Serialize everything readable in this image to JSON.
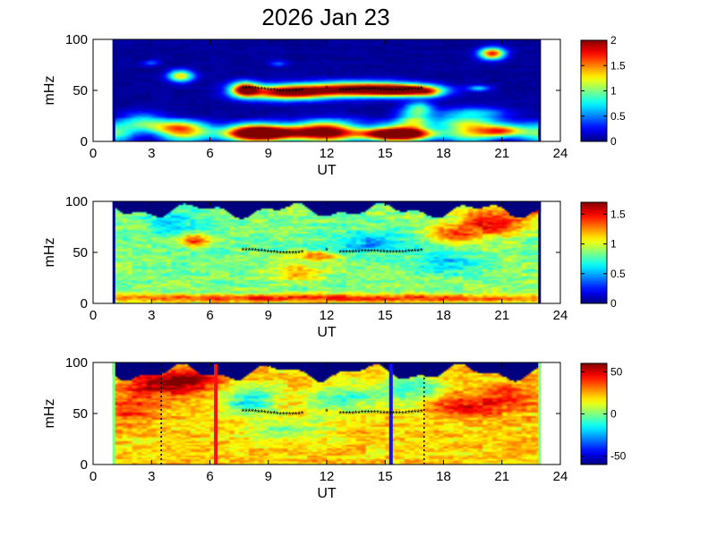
{
  "chart_data": {
    "type": "heatmap",
    "title": "2026 Jan 23",
    "panels": [
      {
        "id": "panel-1",
        "xlabel": "UT",
        "ylabel": "mHz",
        "xlim": [
          0,
          24
        ],
        "ylim": [
          0,
          100
        ],
        "data_x_range": [
          1,
          23
        ],
        "xticks": [
          "0",
          "3",
          "6",
          "9",
          "12",
          "15",
          "18",
          "21",
          "24"
        ],
        "yticks": [
          "0",
          "50",
          "100"
        ],
        "colorbar": {
          "min": 0,
          "max": 2,
          "ticks": [
            "0",
            "0.5",
            "1",
            "1.5",
            "2"
          ]
        },
        "background_level": 0.05,
        "features": [
          {
            "t": 4.5,
            "f": 64,
            "a": 1.3,
            "dt": 0.45,
            "df": 4
          },
          {
            "t": 20.5,
            "f": 86,
            "a": 1.7,
            "dt": 0.45,
            "df": 4
          },
          {
            "t": 3.0,
            "f": 77,
            "a": 0.4,
            "dt": 0.3,
            "df": 2
          },
          {
            "t": 9.5,
            "f": 76,
            "a": 0.4,
            "dt": 0.3,
            "df": 2
          },
          {
            "t": 7.8,
            "f": 51,
            "a": 1.8,
            "dt": 0.5,
            "df": 5
          },
          {
            "t": 10.0,
            "f": 48,
            "a": 2.0,
            "dt": 1.5,
            "df": 5
          },
          {
            "t": 13.5,
            "f": 51,
            "a": 2.0,
            "dt": 1.8,
            "df": 5
          },
          {
            "t": 16.0,
            "f": 50,
            "a": 1.9,
            "dt": 1.2,
            "df": 4
          },
          {
            "t": 17.3,
            "f": 48,
            "a": 0.6,
            "dt": 0.5,
            "df": 4
          },
          {
            "t": 19.8,
            "f": 52,
            "a": 0.6,
            "dt": 0.4,
            "df": 2
          },
          {
            "t": 9.0,
            "f": 8,
            "a": 2.1,
            "dt": 1.8,
            "df": 5
          },
          {
            "t": 15.5,
            "f": 7,
            "a": 2.0,
            "dt": 1.6,
            "df": 4
          },
          {
            "t": 21.0,
            "f": 10,
            "a": 1.5,
            "dt": 0.8,
            "df": 4
          },
          {
            "t": 4.0,
            "f": 14,
            "a": 0.9,
            "dt": 1.2,
            "df": 5
          },
          {
            "t": 12.0,
            "f": 12,
            "a": 0.8,
            "dt": 1.5,
            "df": 7
          },
          {
            "t": 16.5,
            "f": 22,
            "a": 0.8,
            "dt": 0.6,
            "df": 8
          },
          {
            "t": 16.8,
            "f": 33,
            "a": 0.6,
            "dt": 0.5,
            "df": 4
          },
          {
            "t": 19.5,
            "f": 28,
            "a": 0.6,
            "dt": 1.2,
            "df": 4
          },
          {
            "t": 19.0,
            "f": 18,
            "a": 0.7,
            "dt": 1.5,
            "df": 5
          },
          {
            "t": 2.5,
            "f": 20,
            "a": 0.6,
            "dt": 0.8,
            "df": 6
          }
        ]
      },
      {
        "id": "panel-2",
        "xlabel": "UT",
        "ylabel": "mHz",
        "xlim": [
          0,
          24
        ],
        "ylim": [
          0,
          100
        ],
        "data_x_range": [
          1,
          23
        ],
        "xticks": [
          "0",
          "3",
          "6",
          "9",
          "12",
          "15",
          "18",
          "21",
          "24"
        ],
        "yticks": [
          "0",
          "50",
          "100"
        ],
        "colorbar": {
          "min": 0,
          "max": 1.7,
          "ticks": [
            "0",
            "0.5",
            "1",
            "1.5"
          ]
        },
        "background_level": 0.85,
        "features": [
          {
            "t": 12.0,
            "f": 5,
            "a": 0.6,
            "dt": 12,
            "df": 3
          },
          {
            "t": 5.2,
            "f": 62,
            "a": 0.6,
            "dt": 0.5,
            "df": 4
          },
          {
            "t": 11.5,
            "f": 46,
            "a": 0.5,
            "dt": 0.8,
            "df": 3
          },
          {
            "t": 20.5,
            "f": 80,
            "a": 0.7,
            "dt": 1.2,
            "df": 10
          },
          {
            "t": 18.5,
            "f": 68,
            "a": 0.5,
            "dt": 0.8,
            "df": 6
          },
          {
            "t": 22.5,
            "f": 92,
            "a": 0.6,
            "dt": 0.6,
            "df": 5
          },
          {
            "t": 4.0,
            "f": 78,
            "a": -0.3,
            "dt": 1.0,
            "df": 10
          },
          {
            "t": 14.0,
            "f": 60,
            "a": -0.35,
            "dt": 1.5,
            "df": 8
          },
          {
            "t": 18.0,
            "f": 40,
            "a": -0.3,
            "dt": 1.0,
            "df": 8
          },
          {
            "t": 10.5,
            "f": 30,
            "a": 0.3,
            "dt": 1.0,
            "df": 6
          }
        ],
        "top_cut": {
          "base": 91,
          "amp": 5,
          "tint": "#00007f"
        }
      },
      {
        "id": "panel-3",
        "xlabel": "UT",
        "ylabel": "mHz",
        "xlim": [
          0,
          24
        ],
        "ylim": [
          0,
          100
        ],
        "data_x_range": [
          1,
          23
        ],
        "xticks": [
          "0",
          "3",
          "6",
          "9",
          "12",
          "15",
          "18",
          "21",
          "24"
        ],
        "yticks": [
          "0",
          "50",
          "100"
        ],
        "colorbar": {
          "min": -60,
          "max": 60,
          "ticks": [
            "50",
            "0",
            "-50"
          ]
        },
        "background_level": 20,
        "features": [
          {
            "t": 3.8,
            "f": 78,
            "a": 35,
            "dt": 1.5,
            "df": 8
          },
          {
            "t": 5.0,
            "f": 85,
            "a": 25,
            "dt": 1.0,
            "df": 6
          },
          {
            "t": 2.0,
            "f": 55,
            "a": 20,
            "dt": 1.0,
            "df": 10
          },
          {
            "t": 8.0,
            "f": 62,
            "a": -35,
            "dt": 1.0,
            "df": 10
          },
          {
            "t": 12.8,
            "f": 65,
            "a": -30,
            "dt": 1.2,
            "df": 10
          },
          {
            "t": 16.5,
            "f": 72,
            "a": -30,
            "dt": 1.0,
            "df": 12
          },
          {
            "t": 10.0,
            "f": 35,
            "a": -20,
            "dt": 1.5,
            "df": 8
          },
          {
            "t": 19.0,
            "f": 58,
            "a": 25,
            "dt": 1.5,
            "df": 8
          },
          {
            "t": 21.5,
            "f": 68,
            "a": 15,
            "dt": 1.0,
            "df": 10
          }
        ],
        "top_cut": {
          "base": 90,
          "amp": 6,
          "tint": "#00007f"
        },
        "markers": [
          {
            "t": 6.3,
            "color": "#ff1010",
            "style": "solid"
          },
          {
            "t": 15.3,
            "color": "#1010ff",
            "style": "solid"
          },
          {
            "t": 3.5,
            "color": "#000000",
            "style": "dotted"
          },
          {
            "t": 17.0,
            "color": "#000000",
            "style": "dotted"
          }
        ],
        "edge_color": "#80ff80"
      }
    ],
    "ridge": {
      "marker": "black asterisk",
      "segments": [
        {
          "t_start": 7.7,
          "t_end": 10.8,
          "f": [
            52,
            52,
            51,
            50,
            49,
            49,
            50
          ]
        },
        {
          "t_start": 12.0,
          "t_end": 12.0,
          "f": [
            52
          ]
        },
        {
          "t_start": 12.7,
          "t_end": 17.0,
          "f": [
            50,
            50,
            51,
            51,
            50,
            50,
            51,
            52
          ]
        }
      ]
    }
  }
}
